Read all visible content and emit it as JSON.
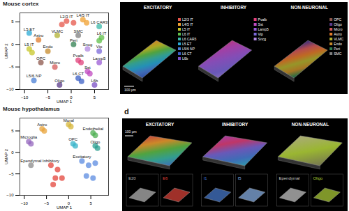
{
  "chart_data": [
    {
      "type": "scatter",
      "title": "Mouse cortex",
      "x_label": "UMAP 1",
      "y_label": "UMAP 2",
      "xlim": [
        -11,
        8
      ],
      "ylim": [
        -10,
        7
      ],
      "xticks": [
        -10,
        -5,
        0,
        5
      ],
      "yticks": [
        -10,
        -5,
        0,
        5
      ],
      "series": [
        {
          "name": "L2/3 IT",
          "color": "#e6554a",
          "x": [
            -1,
            0.5,
            -2
          ],
          "y": [
            5.2,
            4.8,
            4.4
          ]
        },
        {
          "name": "L4/5 IT",
          "color": "#f0a030",
          "x": [
            2.5,
            3.3
          ],
          "y": [
            5.5,
            4.8
          ]
        },
        {
          "name": "L5 IT",
          "color": "#c7c72a",
          "x": [
            -9,
            -8.4
          ],
          "y": [
            -1,
            -1.8
          ]
        },
        {
          "name": "L6 IT",
          "color": "#5fbf4a",
          "x": [
            6.5,
            6
          ],
          "y": [
            1.5,
            0.8
          ]
        },
        {
          "name": "L6 CAR3",
          "color": "#3bb8a8",
          "x": [
            6
          ],
          "y": [
            4
          ]
        },
        {
          "name": "L5 ET",
          "color": "#2aa9d6",
          "x": [
            -9
          ],
          "y": [
            2.5
          ]
        },
        {
          "name": "L5/6 NP",
          "color": "#4a7fd6",
          "x": [
            -8
          ],
          "y": [
            -8
          ]
        },
        {
          "name": "L6 CT",
          "color": "#3b5fc4",
          "x": [
            1.5,
            2.2
          ],
          "y": [
            -7.5,
            -8.2
          ]
        },
        {
          "name": "L6b",
          "color": "#7a4fc4",
          "x": [
            5
          ],
          "y": [
            -9
          ]
        },
        {
          "name": "Pvalb",
          "color": "#e0407a",
          "x": [
            1.5,
            2.1
          ],
          "y": [
            -3.5,
            -4
          ]
        },
        {
          "name": "Sst",
          "color": "#c04ac0",
          "x": [
            3.5,
            4
          ],
          "y": [
            -6,
            -6.5
          ]
        },
        {
          "name": "Lamp5",
          "color": "#9a5bd6",
          "x": [
            6
          ],
          "y": [
            -4
          ]
        },
        {
          "name": "Vip",
          "color": "#7b68d8",
          "x": [
            6
          ],
          "y": [
            -1.5
          ]
        },
        {
          "name": "Sncg",
          "color": "#b088e0",
          "x": [
            3.5
          ],
          "y": [
            -1
          ]
        },
        {
          "name": "OPC",
          "color": "#8c564b",
          "x": [
            -6.5
          ],
          "y": [
            -4
          ]
        },
        {
          "name": "Oligo",
          "color": "#5a3a8a",
          "x": [
            -2.5
          ],
          "y": [
            -9
          ]
        },
        {
          "name": "Micro",
          "color": "#d45a5a",
          "x": [
            -3.5
          ],
          "y": [
            -5
          ]
        },
        {
          "name": "Astro",
          "color": "#e07b2a",
          "x": [
            -7
          ],
          "y": [
            1
          ]
        },
        {
          "name": "VLMC",
          "color": "#b0b030",
          "x": [
            -3
          ],
          "y": [
            2
          ]
        },
        {
          "name": "Endo",
          "color": "#c58a2a",
          "x": [
            -5
          ],
          "y": [
            -1.5
          ]
        },
        {
          "name": "Peri",
          "color": "#2f7f4f",
          "x": [
            0.5
          ],
          "y": [
            0
          ]
        },
        {
          "name": "SMC",
          "color": "#7f7f7f",
          "x": [
            1.5
          ],
          "y": [
            2
          ]
        }
      ]
    },
    {
      "type": "scatter",
      "title": "Mouse hypothalamus",
      "x_label": "UMAP 1",
      "y_label": "UMAP 2",
      "xlim": [
        -11,
        9
      ],
      "ylim": [
        -10,
        8
      ],
      "xticks": [
        -10,
        -5,
        0,
        5
      ],
      "yticks": [
        -10,
        -5,
        0,
        5
      ],
      "series": [
        {
          "name": "Astro",
          "color": "#e8a33a",
          "x": [
            -6,
            -5.5
          ],
          "y": [
            5.5,
            5
          ]
        },
        {
          "name": "Mural",
          "color": "#d6b53a",
          "x": [
            0,
            0.5
          ],
          "y": [
            6.5,
            6
          ]
        },
        {
          "name": "Endothelial",
          "color": "#4caf50",
          "x": [
            5.5,
            6
          ],
          "y": [
            4.5,
            4
          ]
        },
        {
          "name": "Microglia",
          "color": "#9467bd",
          "x": [
            -9,
            -8.5
          ],
          "y": [
            2.5,
            2
          ]
        },
        {
          "name": "OPC",
          "color": "#36b3c9",
          "x": [
            1,
            1.5
          ],
          "y": [
            2,
            1.5
          ]
        },
        {
          "name": "Oligo",
          "color": "#2a9d8f",
          "x": [
            6,
            6.5
          ],
          "y": [
            1.5,
            1
          ]
        },
        {
          "name": "Ependymal",
          "color": "#8a8a8a",
          "x": [
            -8.5
          ],
          "y": [
            -3
          ]
        },
        {
          "name": "Inhibitory",
          "color": "#e3443b",
          "x": [
            -4,
            -2.5,
            -3,
            -1.5,
            -3.5
          ],
          "y": [
            -3,
            -4,
            -6,
            -6,
            -7.5
          ]
        },
        {
          "name": "Excitatory",
          "color": "#5b8be0",
          "x": [
            3,
            4.5,
            6,
            4,
            5.5
          ],
          "y": [
            -2,
            -3,
            -2.5,
            -5.5,
            -6
          ]
        }
      ]
    }
  ],
  "cortex_panels": {
    "scale_bar": "100 μm",
    "columns": [
      {
        "title": "EXCITATORY",
        "legend": [
          "L2/3 IT",
          "L4/5 IT",
          "L5 IT",
          "L6 IT",
          "L6 CAR3",
          "L5 ET",
          "L5/6 NP",
          "L6 CT",
          "L6b"
        ]
      },
      {
        "title": "INHIBITORY",
        "legend": [
          "Pvalb",
          "Sst",
          "Lamp5",
          "Vip",
          "Sncg"
        ]
      },
      {
        "title": "NON-NEURONAL",
        "legend": [
          "OPC",
          "Oligo",
          "Micro",
          "Astro",
          "VLMC",
          "Endo",
          "Peri",
          "SMC"
        ]
      }
    ]
  },
  "hypothalamus_panels": {
    "label": "d",
    "scale_bar": "100 μm",
    "columns": [
      {
        "title": "EXCITATORY",
        "colors": [
          "#e6554a",
          "#f0a030",
          "#5fbf4a",
          "#3bb8a8",
          "#4a7fd6"
        ],
        "insets": [
          {
            "name": "E20",
            "color": "#bdbdbd"
          },
          {
            "name": "E6",
            "color": "#e3443b"
          }
        ]
      },
      {
        "title": "INHIBITORY",
        "colors": [
          "#c04ac0",
          "#e0407a",
          "#7b68d8",
          "#4a7fd6",
          "#36b3c9"
        ],
        "insets": [
          {
            "name": "I1",
            "color": "#4a7fd6"
          },
          {
            "name": "I5",
            "color": "#8fb8f0"
          }
        ]
      },
      {
        "title": "NON-NEURONAL",
        "colors": [
          "#c8c890",
          "#b5d63a",
          "#8a8a60"
        ],
        "insets": [
          {
            "name": "Ependymal",
            "color": "#cfcfcf"
          },
          {
            "name": "Oligo",
            "color": "#b5d63a"
          }
        ]
      }
    ]
  }
}
